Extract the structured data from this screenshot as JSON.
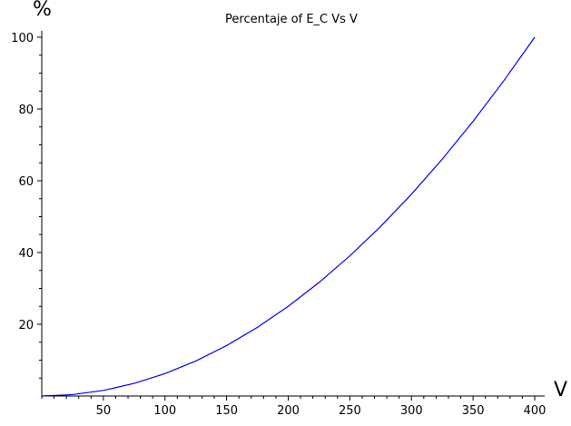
{
  "chart_data": {
    "type": "line",
    "title": "Percentaje of E_C Vs V",
    "xlabel": "V",
    "ylabel": "%",
    "xlim": [
      0,
      400
    ],
    "ylim": [
      0,
      100
    ],
    "xticks": [
      50,
      100,
      150,
      200,
      250,
      300,
      350,
      400
    ],
    "yticks": [
      20,
      40,
      60,
      80,
      100
    ],
    "grid": false,
    "legend": "none",
    "line_color": "#0000ff",
    "series": [
      {
        "x": [
          0,
          25,
          50,
          75,
          100,
          125,
          150,
          175,
          200,
          225,
          250,
          275,
          300,
          325,
          350,
          375,
          400
        ],
        "values": [
          0,
          0.39,
          1.56,
          3.52,
          6.25,
          9.77,
          14.06,
          19.14,
          25.0,
          31.64,
          39.06,
          47.27,
          56.25,
          66.02,
          76.56,
          87.89,
          100
        ]
      }
    ]
  }
}
